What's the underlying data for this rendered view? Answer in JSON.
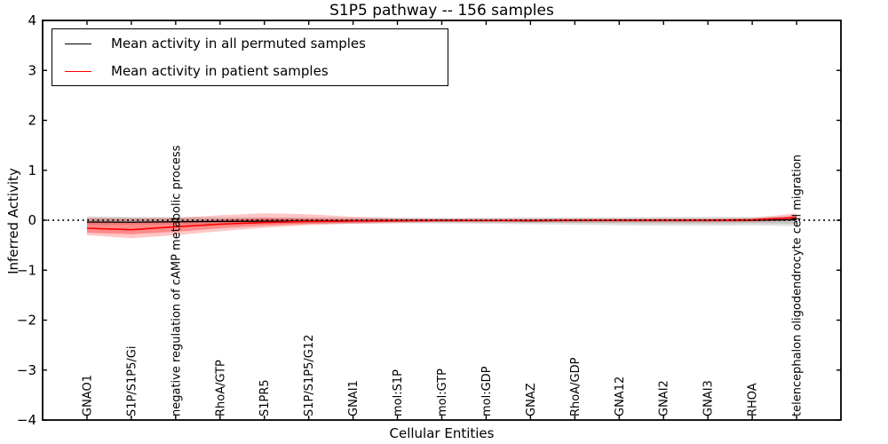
{
  "title": "S1P5 pathway -- 156 samples",
  "legend": {
    "items": [
      {
        "label": "Mean activity in all permuted samples",
        "color": "#000000"
      },
      {
        "label": "Mean activity in patient samples",
        "color": "#ff0000"
      }
    ]
  },
  "colors": {
    "permuted_line": "#000000",
    "patient_line": "#ff0000",
    "permuted_band": "rgba(120,120,120,0.22)",
    "patient_band": "rgba(255,0,0,0.22)",
    "axis": "#000000",
    "background": "#ffffff"
  },
  "chart_data": {
    "type": "line",
    "title": "S1P5 pathway -- 156 samples",
    "xlabel": "Cellular Entities",
    "ylabel": "Inferred Activity",
    "ylim": [
      -4,
      4
    ],
    "yticks": [
      -4,
      -3,
      -2,
      -1,
      0,
      1,
      2,
      3,
      4
    ],
    "grid": false,
    "legend_position": "upper-left",
    "zero_line": {
      "style": "dotted",
      "color": "#000000",
      "y": 0
    },
    "categories": [
      "GNAO1",
      "S1P/S1P5/Gi",
      "negative regulation of cAMP metabolic process",
      "RhoA/GTP",
      "S1PR5",
      "S1P/S1P5/G12",
      "GNAI1",
      "mol:S1P",
      "mol:GTP",
      "mol:GDP",
      "GNAZ",
      "RhoA/GDP",
      "GNA12",
      "GNAI2",
      "GNAI3",
      "RHOA",
      "telencephalon oligodendrocyte cell migration"
    ],
    "series": [
      {
        "name": "Mean activity in all permuted samples",
        "color": "#000000",
        "width": 1.3,
        "values": [
          -0.035,
          -0.04,
          -0.03,
          -0.025,
          -0.02,
          -0.015,
          -0.01,
          -0.005,
          0,
          -0.005,
          -0.01,
          -0.005,
          0,
          0,
          0,
          0,
          0.01
        ]
      },
      {
        "name": "Mean activity in patient samples",
        "color": "#ff0000",
        "width": 1.6,
        "values": [
          -0.16,
          -0.19,
          -0.13,
          -0.08,
          -0.045,
          -0.025,
          -0.015,
          -0.01,
          -0.005,
          -0.005,
          -0.005,
          0,
          0,
          0,
          0,
          0.01,
          0.05
        ]
      }
    ],
    "bands": [
      {
        "name": "permuted-band-outer",
        "color": "rgba(0,0,0,0.12)",
        "upper": [
          0.08,
          0.07,
          0.065,
          0.06,
          0.06,
          0.06,
          0.055,
          0.05,
          0.05,
          0.05,
          0.055,
          0.06,
          0.06,
          0.065,
          0.07,
          0.07,
          0.08
        ],
        "lower": [
          -0.1,
          -0.09,
          -0.085,
          -0.08,
          -0.08,
          -0.075,
          -0.07,
          -0.065,
          -0.065,
          -0.07,
          -0.08,
          -0.09,
          -0.1,
          -0.11,
          -0.11,
          -0.1,
          -0.12
        ]
      },
      {
        "name": "permuted-band-inner",
        "color": "rgba(0,0,0,0.12)",
        "upper": [
          0.045,
          0.04,
          0.04,
          0.035,
          0.035,
          0.035,
          0.03,
          0.03,
          0.03,
          0.03,
          0.03,
          0.035,
          0.035,
          0.04,
          0.04,
          0.04,
          0.045
        ],
        "lower": [
          -0.06,
          -0.055,
          -0.05,
          -0.05,
          -0.05,
          -0.045,
          -0.045,
          -0.04,
          -0.04,
          -0.045,
          -0.05,
          -0.055,
          -0.06,
          -0.065,
          -0.065,
          -0.06,
          -0.07
        ]
      },
      {
        "name": "patient-band-outer",
        "color": "rgba(255,0,0,0.22)",
        "upper": [
          0.05,
          0.04,
          0.05,
          0.1,
          0.14,
          0.12,
          0.07,
          0.04,
          0.03,
          0.03,
          0.03,
          0.03,
          0.03,
          0.03,
          0.03,
          0.04,
          0.14
        ],
        "lower": [
          -0.3,
          -0.36,
          -0.3,
          -0.22,
          -0.15,
          -0.1,
          -0.07,
          -0.05,
          -0.04,
          -0.04,
          -0.04,
          -0.04,
          -0.04,
          -0.04,
          -0.04,
          -0.03,
          -0.01
        ]
      },
      {
        "name": "patient-band-inner",
        "color": "rgba(255,0,0,0.30)",
        "upper": [
          -0.03,
          -0.05,
          -0.03,
          0.01,
          0.04,
          0.03,
          0.02,
          0.01,
          0.01,
          0.01,
          0.01,
          0.01,
          0.01,
          0.01,
          0.01,
          0.02,
          0.09
        ],
        "lower": [
          -0.25,
          -0.28,
          -0.23,
          -0.16,
          -0.11,
          -0.07,
          -0.05,
          -0.03,
          -0.02,
          -0.02,
          -0.02,
          -0.02,
          -0.02,
          -0.02,
          -0.02,
          -0.02,
          0.005
        ]
      }
    ]
  }
}
